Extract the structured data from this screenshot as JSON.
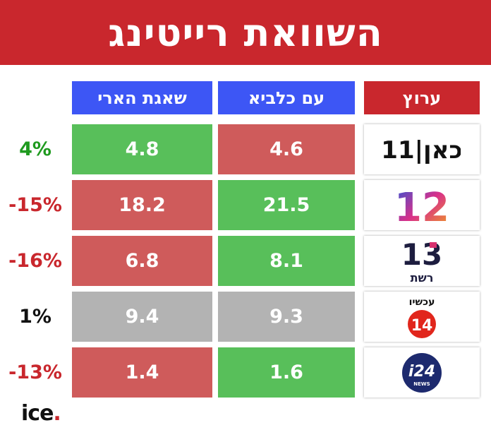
{
  "title": "השוואת רייטינג",
  "brand": {
    "name": "ice",
    "dot": "."
  },
  "colors": {
    "banner": "#c9272d",
    "header_blue": "#3d56f5",
    "header_red": "#c9272d",
    "higher": "#58bf5a",
    "lower": "#cf5b5b",
    "tie": "#b3b3b3",
    "pct_positive": "#1f9a1f",
    "pct_negative": "#c9272d",
    "pct_neutral": "#111111"
  },
  "chart_data": {
    "type": "table",
    "columns": [
      "ערוץ",
      "עם כלביא",
      "שאגת הארי",
      ""
    ],
    "rows": [
      {
        "channel_logo": "kan11-icon",
        "am_kelavi": "4.6",
        "shaagat_haari": "4.8",
        "change": "4%"
      },
      {
        "channel_logo": "channel12-icon",
        "am_kelavi": "21.5",
        "shaagat_haari": "18.2",
        "change": "-15%"
      },
      {
        "channel_logo": "channel13-reshet-icon",
        "am_kelavi": "8.1",
        "shaagat_haari": "6.8",
        "change": "-16%"
      },
      {
        "channel_logo": "channel14-now-icon",
        "am_kelavi": "9.3",
        "shaagat_haari": "9.4",
        "change": "1%"
      },
      {
        "channel_logo": "i24news-icon",
        "am_kelavi": "1.6",
        "shaagat_haari": "1.4",
        "change": "-13%"
      }
    ]
  },
  "logos": {
    "kan11": "כאן|11",
    "ch12": "12",
    "ch13_num": "13",
    "ch13_name": "רשת",
    "ch14_name": "עכשיו",
    "ch14_num": "14",
    "i24": "i24",
    "i24_sub": "NEWS"
  }
}
